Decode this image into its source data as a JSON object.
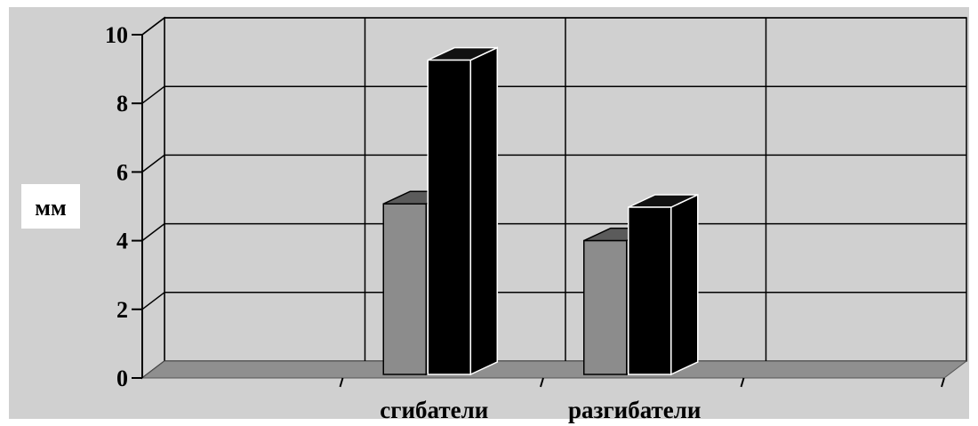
{
  "chart_data": {
    "type": "bar",
    "style": "3d-clustered-column",
    "ylabel": "мм",
    "ylim": [
      0,
      10
    ],
    "yticks": [
      0,
      2,
      4,
      6,
      8,
      10
    ],
    "grid": true,
    "legend": "none",
    "category_slots": 4,
    "categories": [
      "",
      "сгибатели",
      "разгибатели",
      ""
    ],
    "series": [
      {
        "values": [
          null,
          5.1,
          4.0,
          null
        ],
        "color": "#8c8c8c"
      },
      {
        "values": [
          null,
          9.4,
          5.0,
          null
        ],
        "color": "#000000"
      }
    ],
    "colors": {
      "background": "#ffffff",
      "wall": "#d0d0d0",
      "floor": "#8f8f8f",
      "grid": "#000000"
    }
  }
}
